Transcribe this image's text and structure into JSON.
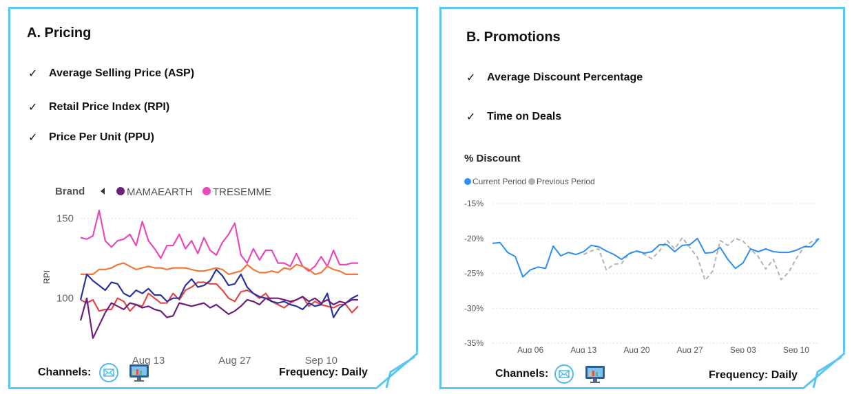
{
  "pricing": {
    "title": "A. Pricing",
    "checklist": [
      "Average Selling Price (ASP)",
      "Retail Price Index (RPI)",
      "Price Per Unit (PPU)"
    ],
    "channels_label": "Channels:",
    "frequency_label": "Frequency: Daily"
  },
  "promotions": {
    "title": "B. Promotions",
    "checklist": [
      "Average Discount Percentage",
      "Time on Deals"
    ],
    "channels_label": "Channels:",
    "frequency_label": "Frequency: Daily"
  },
  "icons": {
    "email": "email-icon",
    "monitor": "desktop-monitor-icon"
  },
  "colors": {
    "border": "#5bc6f0",
    "current": "#2b8ef0",
    "previous": "#b3b3b3"
  },
  "chart_data": [
    {
      "type": "line",
      "title": "",
      "ylabel": "RPI",
      "legend_title": "Brand",
      "legend_items": [
        "MAMAEARTH",
        "TRESEMME"
      ],
      "legend_colors": [
        "#6b1f7b",
        "#e64ab8"
      ],
      "x_ticks": [
        "Aug 13",
        "Aug 27",
        "Sep 10"
      ],
      "x_tick_index": [
        11,
        25,
        39
      ],
      "y_ticks": [
        100,
        150
      ],
      "ylim": [
        65,
        158
      ],
      "series": [
        {
          "color": "#e64ab8",
          "values": [
            138,
            137,
            139,
            155,
            136,
            132,
            136,
            137,
            140,
            133,
            148,
            136,
            131,
            125,
            133,
            133,
            140,
            131,
            136,
            128,
            138,
            130,
            127,
            135,
            140,
            147,
            127,
            122,
            131,
            124,
            130,
            130,
            122,
            122,
            120,
            128,
            120,
            117,
            120,
            126,
            120,
            130,
            121,
            121,
            122,
            122
          ]
        },
        {
          "color": "#f07838",
          "values": [
            115,
            115,
            115,
            118,
            118,
            119,
            121,
            122,
            120,
            118,
            119,
            120,
            119,
            119,
            118,
            119,
            119,
            119,
            118,
            117,
            117,
            118,
            119,
            118,
            115,
            116,
            117,
            121,
            118,
            116,
            116,
            117,
            116,
            119,
            118,
            121,
            120,
            118,
            115,
            116,
            120,
            118,
            117,
            115,
            115,
            115
          ]
        },
        {
          "color": "#e04848",
          "values": [
            99,
            97,
            99,
            92,
            93,
            93,
            100,
            98,
            92,
            96,
            95,
            103,
            100,
            97,
            97,
            103,
            99,
            105,
            107,
            110,
            110,
            109,
            109,
            105,
            100,
            98,
            104,
            105,
            103,
            100,
            103,
            98,
            96,
            94,
            97,
            99,
            101,
            95,
            98,
            96,
            95,
            94,
            96,
            96,
            91,
            95
          ]
        },
        {
          "color": "#28329a",
          "values": [
            99,
            115,
            111,
            108,
            105,
            110,
            109,
            103,
            101,
            105,
            103,
            106,
            102,
            102,
            98,
            100,
            100,
            108,
            112,
            107,
            108,
            111,
            118,
            114,
            108,
            109,
            115,
            107,
            103,
            101,
            100,
            98,
            97,
            98,
            96,
            95,
            93,
            97,
            95,
            96,
            103,
            88,
            94,
            97,
            100,
            102
          ]
        },
        {
          "color": "#6b1f7b",
          "values": [
            86,
            100,
            75,
            83,
            91,
            97,
            95,
            93,
            97,
            96,
            94,
            95,
            93,
            92,
            88,
            89,
            97,
            96,
            95,
            96,
            97,
            94,
            96,
            93,
            90,
            92,
            95,
            99,
            98,
            96,
            100,
            100,
            100,
            99,
            98,
            99,
            101,
            98,
            100,
            97,
            99,
            96,
            98,
            97,
            99,
            99
          ]
        }
      ]
    },
    {
      "type": "line",
      "title": "% Discount",
      "legend_items": [
        "Current Period",
        "Previous Period"
      ],
      "x_ticks": [
        "Aug 06",
        "Aug 13",
        "Aug 20",
        "Aug 27",
        "Sep 03",
        "Sep 10"
      ],
      "x_tick_index": [
        5,
        12,
        19,
        26,
        33,
        40
      ],
      "y_ticks": [
        "-15%",
        "-20%",
        "-25%",
        "-30%",
        "-35%"
      ],
      "y_tick_values": [
        -15,
        -20,
        -25,
        -30,
        -35
      ],
      "ylim": [
        -35,
        -15
      ],
      "series": [
        {
          "name": "Current Period",
          "color": "#2b8ef0",
          "dashed": false,
          "values": [
            -20.7,
            -20.6,
            -22.0,
            -22.6,
            -25.5,
            -24.5,
            -24.1,
            -24.3,
            -21.1,
            -22.5,
            -22.0,
            -22.3,
            -21.9,
            -21.0,
            -21.2,
            -21.8,
            -22.3,
            -23.0,
            -22.2,
            -21.8,
            -22.1,
            -21.9,
            -20.9,
            -20.9,
            -21.9,
            -21.0,
            -20.9,
            -20.0,
            -22.1,
            -22.0,
            -21.3,
            -23.0,
            -24.3,
            -23.5,
            -21.5,
            -21.9,
            -21.5,
            -21.9,
            -22.0,
            -22.0,
            -21.7,
            -21.2,
            -21.2,
            -20.0
          ]
        },
        {
          "name": "Previous Period",
          "color": "#b3b3b3",
          "dashed": true,
          "values": [
            null,
            null,
            null,
            null,
            null,
            null,
            null,
            null,
            null,
            null,
            null,
            null,
            -22.3,
            -21.8,
            -21.5,
            -24.5,
            -23.7,
            -23.6,
            -22.1,
            -21.8,
            -22.3,
            -22.9,
            -21.8,
            -20.3,
            -21.5,
            -19.9,
            -21.3,
            -22.7,
            -26.0,
            -24.7,
            -20.3,
            -21.0,
            -20.0,
            -20.4,
            -21.5,
            -22.6,
            -24.4,
            -23.0,
            -25.9,
            -24.9,
            -22.9,
            -21.3,
            -20.5,
            -20.0
          ]
        }
      ]
    }
  ]
}
